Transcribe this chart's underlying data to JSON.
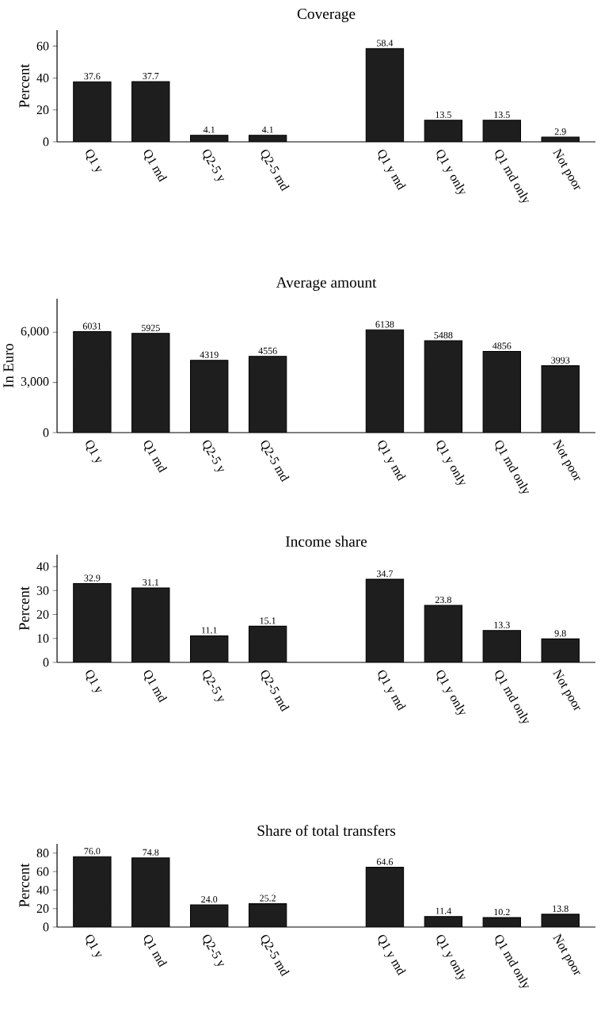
{
  "chart_data": [
    {
      "type": "bar",
      "title": "Coverage",
      "ylabel": "Percent",
      "categories": [
        "Q1 y",
        "Q1 md",
        "Q2-5 y",
        "Q2-5 md",
        null,
        "Q1 y md",
        "Q1 y only",
        "Q1 md only",
        "Not poor"
      ],
      "values": [
        37.6,
        37.7,
        4.1,
        4.1,
        null,
        58.4,
        13.5,
        13.5,
        2.9
      ],
      "value_labels": [
        "37.6",
        "37.7",
        "4.1",
        "4.1",
        null,
        "58.4",
        "13.5",
        "13.5",
        "2.9"
      ],
      "color": "#1e1e1e",
      "ylim": [
        0,
        70
      ],
      "yticks": [
        0,
        20,
        40,
        60
      ]
    },
    {
      "type": "bar",
      "title": "Average amount",
      "ylabel": "In Euro",
      "categories": [
        "Q1 y",
        "Q1 md",
        "Q2-5 y",
        "Q2-5 md",
        null,
        "Q1 y md",
        "Q1 y only",
        "Q1 md only",
        "Not poor"
      ],
      "values": [
        6031,
        5925,
        4319,
        4556,
        null,
        6138,
        5488,
        4856,
        3993
      ],
      "value_labels": [
        "6031",
        "5925",
        "4319",
        "4556",
        null,
        "6138",
        "5488",
        "4856",
        "3993"
      ],
      "color": "#1e1e1e",
      "ylim": [
        0,
        8000
      ],
      "yticks": [
        0,
        {
          "value": 3000,
          "label": "3,000"
        },
        {
          "value": 6000,
          "label": "6,000"
        }
      ]
    },
    {
      "type": "bar",
      "title": "Income share",
      "ylabel": "Percent",
      "categories": [
        "Q1 y",
        "Q1 md",
        "Q2-5 y",
        "Q2-5 md",
        null,
        "Q1 y md",
        "Q1 y only",
        "Q1 md only",
        "Not poor"
      ],
      "values": [
        32.9,
        31.1,
        11.1,
        15.1,
        null,
        34.7,
        23.8,
        13.3,
        9.8
      ],
      "value_labels": [
        "32.9",
        "31.1",
        "11.1",
        "15.1",
        null,
        "34.7",
        "23.8",
        "13.3",
        "9.8"
      ],
      "color": "#1e1e1e",
      "ylim": [
        0,
        45
      ],
      "yticks": [
        0,
        10,
        20,
        30,
        40
      ]
    },
    {
      "type": "bar",
      "title": "Share of total transfers",
      "ylabel": "Percent",
      "categories": [
        "Q1 y",
        "Q1 md",
        "Q2-5 y",
        "Q2-5 md",
        null,
        "Q1 y md",
        "Q1 y only",
        "Q1 md only",
        "Not poor"
      ],
      "values": [
        76.0,
        74.8,
        24.0,
        25.2,
        null,
        64.6,
        11.4,
        10.2,
        13.8
      ],
      "value_labels": [
        "76.0",
        "74.8",
        "24.0",
        "25.2",
        null,
        "64.6",
        "11.4",
        "10.2",
        "13.8"
      ],
      "color": "#1e1e1e",
      "ylim": [
        0,
        90
      ],
      "yticks": [
        0,
        20,
        40,
        60,
        80
      ]
    }
  ]
}
